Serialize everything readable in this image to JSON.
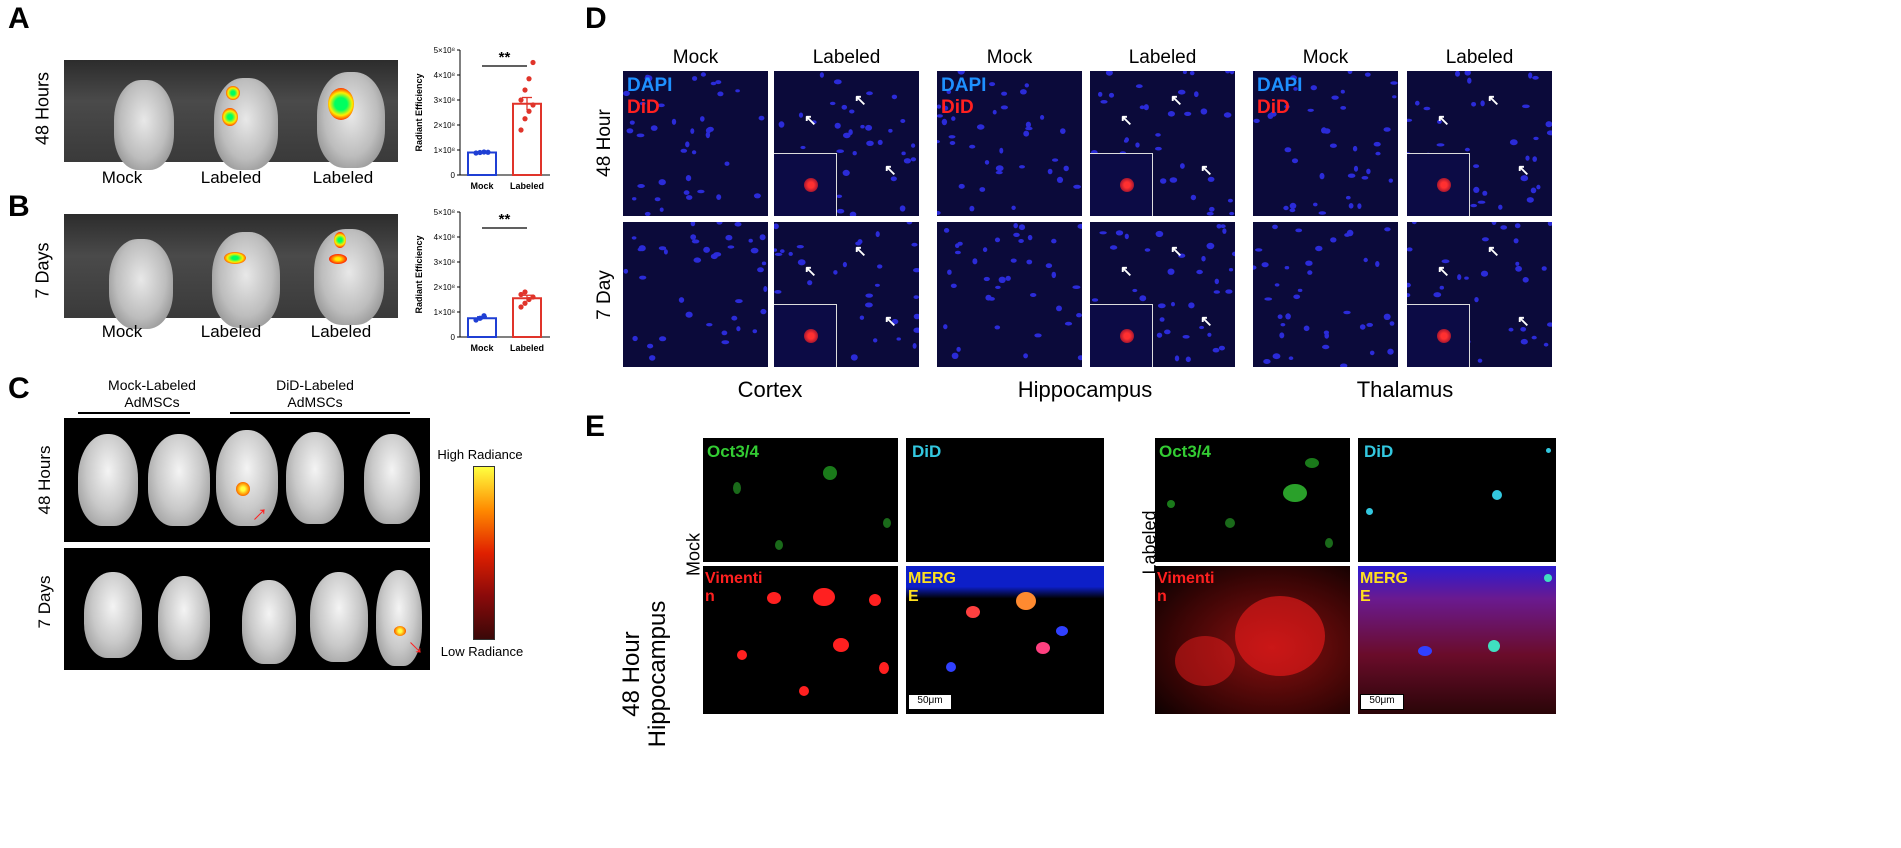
{
  "panels": {
    "A": "A",
    "B": "B",
    "C": "C",
    "D": "D",
    "E": "E"
  },
  "panel_a": {
    "row_label": "48 Hours",
    "image_labels": [
      "Mock",
      "Labeled",
      "Labeled"
    ]
  },
  "panel_b": {
    "row_label": "7 Days",
    "image_labels": [
      "Mock",
      "Labeled",
      "Labeled"
    ]
  },
  "chart_data": [
    {
      "type": "bar",
      "panel": "A",
      "categories": [
        "Mock",
        "Labeled"
      ],
      "values": [
        90000000,
        285000000
      ],
      "errors": [
        3000000,
        25000000
      ],
      "points": [
        [
          88000000,
          90000000,
          92000000,
          91000000
        ],
        [
          180000000,
          225000000,
          255000000,
          280000000,
          300000000,
          340000000,
          385000000,
          450000000
        ]
      ],
      "ylabel": "Radiant Efficiency",
      "ylim": [
        0,
        500000000
      ],
      "yticks": [
        "0",
        "1×10⁸",
        "2×10⁸",
        "3×10⁸",
        "4×10⁸",
        "5×10⁸"
      ],
      "significance": "**",
      "colors": [
        "#1f3fd4",
        "#e0342a"
      ]
    },
    {
      "type": "bar",
      "panel": "B",
      "categories": [
        "Mock",
        "Labeled"
      ],
      "values": [
        75000000,
        155000000
      ],
      "errors": [
        6000000,
        12000000
      ],
      "points": [
        [
          68000000,
          75000000,
          85000000
        ],
        [
          120000000,
          135000000,
          150000000,
          160000000,
          170000000,
          180000000
        ]
      ],
      "ylabel": "Radiant Efficiency",
      "ylim": [
        0,
        500000000
      ],
      "yticks": [
        "0",
        "1×10⁸",
        "2×10⁸",
        "3×10⁸",
        "4×10⁸",
        "5×10⁸"
      ],
      "significance": "**",
      "colors": [
        "#1f3fd4",
        "#e0342a"
      ]
    }
  ],
  "panel_c": {
    "group1_label": "Mock-Labeled AdMSCs",
    "group1_line1": "Mock-Labeled",
    "group1_line2": "AdMSCs",
    "group2_line1": "DiD-Labeled",
    "group2_line2": "AdMSCs",
    "row1_label": "48 Hours",
    "row2_label": "7 Days",
    "scale_high": "High Radiance",
    "scale_low": "Low Radiance",
    "scale_colors": [
      "#ffff40",
      "#ff8a00",
      "#e02000",
      "#8a0a0a",
      "#3a0808"
    ]
  },
  "panel_d": {
    "col_headers": [
      "Mock",
      "Labeled",
      "Mock",
      "Labeled",
      "Mock",
      "Labeled"
    ],
    "row_labels": [
      "48 Hour",
      "7 Day"
    ],
    "stain1": "DAPI",
    "stain2": "DiD",
    "regions": [
      "Cortex",
      "Hippocampus",
      "Thalamus"
    ],
    "colors": {
      "dapi": "#1e90ff",
      "did": "#ff2020"
    }
  },
  "panel_e": {
    "side_label_line1": "48 Hour",
    "side_label_line2": "Hippocampus",
    "mock_label": "Mock",
    "labeled_label": "Labeled",
    "oct": "Oct3/4",
    "did": "DiD",
    "vim_1": "Vimenti",
    "vim_2": "n",
    "merge_1": "MERG",
    "merge_2": "E",
    "scale": "50μm",
    "colors": {
      "oct": "#33cc33",
      "did": "#33c8e0",
      "vim": "#ff2020",
      "merge": "#ffe020"
    }
  }
}
